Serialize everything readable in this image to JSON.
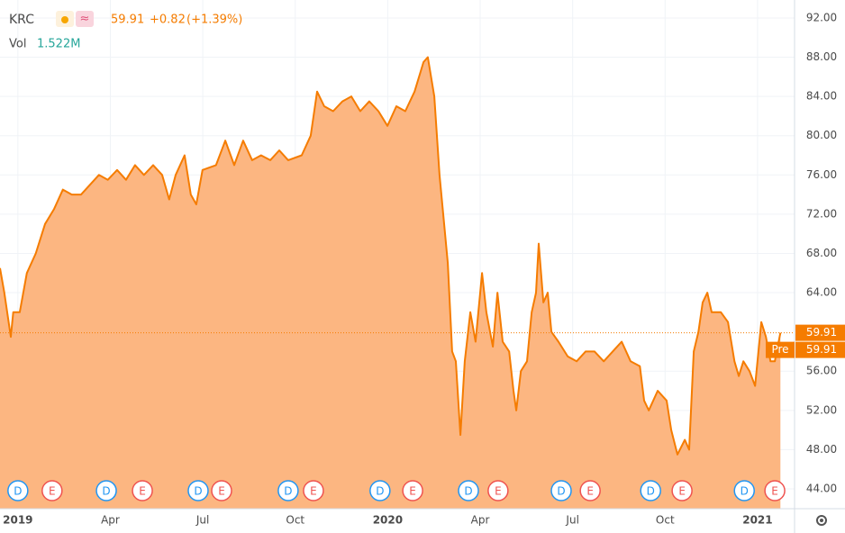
{
  "header": {
    "symbol": "KRC",
    "price": 59.91,
    "change": "+0.82",
    "change_pct": "(+1.39%)",
    "vol_label": "Vol",
    "volume": "1.522M"
  },
  "chart_data": {
    "type": "area",
    "series": [
      {
        "name": "KRC",
        "color": "#f57c00",
        "fill": "#fcb27a",
        "x": [
          -0.58,
          -0.44,
          -0.23,
          -0.15,
          0.06,
          0.29,
          0.58,
          0.88,
          1.17,
          1.46,
          1.75,
          2.05,
          2.34,
          2.63,
          2.92,
          3.22,
          3.51,
          3.8,
          4.09,
          4.39,
          4.68,
          4.91,
          5.12,
          5.41,
          5.61,
          5.79,
          5.99,
          6.43,
          6.73,
          7.02,
          7.31,
          7.6,
          7.89,
          8.19,
          8.48,
          8.77,
          9.21,
          9.5,
          9.71,
          9.94,
          10.23,
          10.53,
          10.82,
          11.11,
          11.4,
          11.7,
          11.99,
          12.28,
          12.57,
          12.87,
          13.16,
          13.3,
          13.51,
          13.68,
          13.8,
          13.95,
          14.09,
          14.21,
          14.36,
          14.5,
          14.68,
          14.85,
          15.06,
          15.2,
          15.41,
          15.56,
          15.73,
          15.94,
          16.08,
          16.17,
          16.32,
          16.52,
          16.67,
          16.81,
          16.9,
          17.05,
          17.19,
          17.31,
          17.54,
          17.84,
          18.13,
          18.42,
          18.71,
          19.01,
          19.3,
          19.59,
          19.88,
          20.18,
          20.32,
          20.47,
          20.76,
          21.05,
          21.2,
          21.4,
          21.64,
          21.78,
          21.93,
          22.08,
          22.22,
          22.37,
          22.51,
          22.81,
          23.04,
          23.25,
          23.39,
          23.54,
          23.74,
          23.92,
          24.12,
          24.27,
          24.42,
          24.56,
          24.74
        ],
        "values": [
          66.5,
          64,
          59.5,
          62,
          62,
          66,
          68,
          71,
          72.5,
          74.5,
          74,
          74,
          75,
          76,
          75.5,
          76.5,
          75.5,
          77,
          76,
          77,
          76,
          73.5,
          76,
          78,
          74,
          73,
          76.5,
          77,
          79.5,
          77,
          79.5,
          77.5,
          78,
          77.5,
          78.5,
          77.5,
          78,
          80,
          84.5,
          83,
          82.5,
          83.5,
          84,
          82.5,
          83.5,
          82.5,
          81,
          83,
          82.5,
          84.5,
          87.5,
          88,
          84,
          76,
          72,
          67,
          58,
          57,
          49.5,
          57,
          62,
          59,
          66,
          62,
          58.5,
          64,
          59,
          58,
          54,
          52,
          56,
          57,
          62,
          64,
          69,
          63,
          64,
          60,
          59,
          57.5,
          57,
          58,
          58,
          57,
          58,
          59,
          57,
          56.5,
          53,
          52,
          54,
          53,
          50,
          47.5,
          49,
          48,
          58,
          60,
          63,
          64,
          62,
          62,
          61,
          57,
          55.5,
          57,
          56,
          54.5,
          61,
          59.5,
          57,
          57,
          59.91
        ]
      }
    ],
    "ylim": [
      41.98,
      93.83
    ],
    "yticks": [
      {
        "value": 44,
        "label": "44.00"
      },
      {
        "value": 48,
        "label": "48.00"
      },
      {
        "value": 52,
        "label": "52.00"
      },
      {
        "value": 56,
        "label": "56.00"
      },
      {
        "value": 64,
        "label": "64.00"
      },
      {
        "value": 68,
        "label": "68.00"
      },
      {
        "value": 72,
        "label": "72.00"
      },
      {
        "value": 76,
        "label": "76.00"
      },
      {
        "value": 80,
        "label": "80.00"
      },
      {
        "value": 84,
        "label": "84.00"
      },
      {
        "value": 88,
        "label": "88.00"
      },
      {
        "value": 92,
        "label": "92.00"
      }
    ],
    "xlim": [
      -0.58,
      25.2
    ],
    "xticks": [
      {
        "value": 0,
        "label": "2019"
      },
      {
        "value": 3,
        "label": "Apr"
      },
      {
        "value": 6,
        "label": "Jul"
      },
      {
        "value": 9,
        "label": "Oct"
      },
      {
        "value": 12,
        "label": "2020"
      },
      {
        "value": 15,
        "label": "Apr"
      },
      {
        "value": 18,
        "label": "Jul"
      },
      {
        "value": 21,
        "label": "Oct"
      },
      {
        "value": 24,
        "label": "2021"
      }
    ],
    "grid": true,
    "last_price": {
      "value": 59.91,
      "label": "59.91"
    },
    "pre_market": {
      "label": "Pre",
      "value": 59.91,
      "text": "59.91"
    },
    "events": [
      {
        "label": "D",
        "x": 0
      },
      {
        "label": "E",
        "x": 1.11
      },
      {
        "label": "D",
        "x": 2.87
      },
      {
        "label": "E",
        "x": 4.04
      },
      {
        "label": "D",
        "x": 5.85
      },
      {
        "label": "E",
        "x": 6.61
      },
      {
        "label": "D",
        "x": 8.77
      },
      {
        "label": "E",
        "x": 9.59
      },
      {
        "label": "D",
        "x": 11.75
      },
      {
        "label": "E",
        "x": 12.81
      },
      {
        "label": "D",
        "x": 14.62
      },
      {
        "label": "E",
        "x": 15.58
      },
      {
        "label": "D",
        "x": 17.63
      },
      {
        "label": "E",
        "x": 18.57
      },
      {
        "label": "D",
        "x": 20.53
      },
      {
        "label": "E",
        "x": 21.55
      },
      {
        "label": "D",
        "x": 23.57
      },
      {
        "label": "E",
        "x": 24.56
      }
    ]
  }
}
